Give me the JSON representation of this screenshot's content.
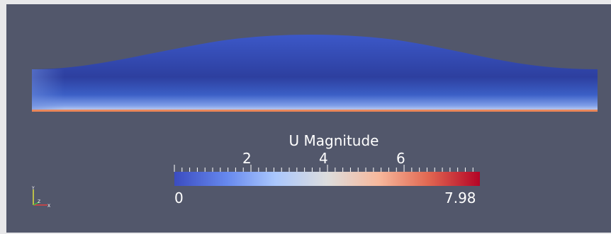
{
  "view": {
    "background_color": "#52576b",
    "page_background_color": "#e8e8ea"
  },
  "scalar_bar": {
    "title": "U Magnitude",
    "range_min_label": "0",
    "range_max_label": "7.98",
    "range": [
      0,
      7.98
    ],
    "major_ticks": [
      {
        "value": 2,
        "label": "2"
      },
      {
        "value": 4,
        "label": "4"
      },
      {
        "value": 6,
        "label": "6"
      }
    ],
    "colormap": [
      "#3b4cc0",
      "#6688ee",
      "#aac7fd",
      "#dddddd",
      "#f7b89c",
      "#e16852",
      "#b40426"
    ]
  },
  "axes": {
    "x_label": "X",
    "y_label": "Y",
    "z_label": "Z"
  }
}
